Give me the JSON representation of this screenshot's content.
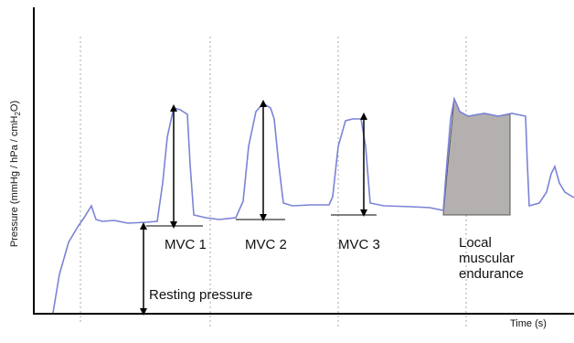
{
  "axes": {
    "y_label": {
      "text": "Pressure (mmHg / hPa / cmH",
      "subscript": "2",
      "suffix": "O)"
    },
    "x_label": "Time (s)"
  },
  "labels": {
    "mvc1": "MVC 1",
    "mvc2": "MVC 2",
    "mvc3": "MVC 3",
    "endurance": [
      "Local",
      "muscular",
      "endurance"
    ],
    "resting": "Resting pressure"
  }
}
